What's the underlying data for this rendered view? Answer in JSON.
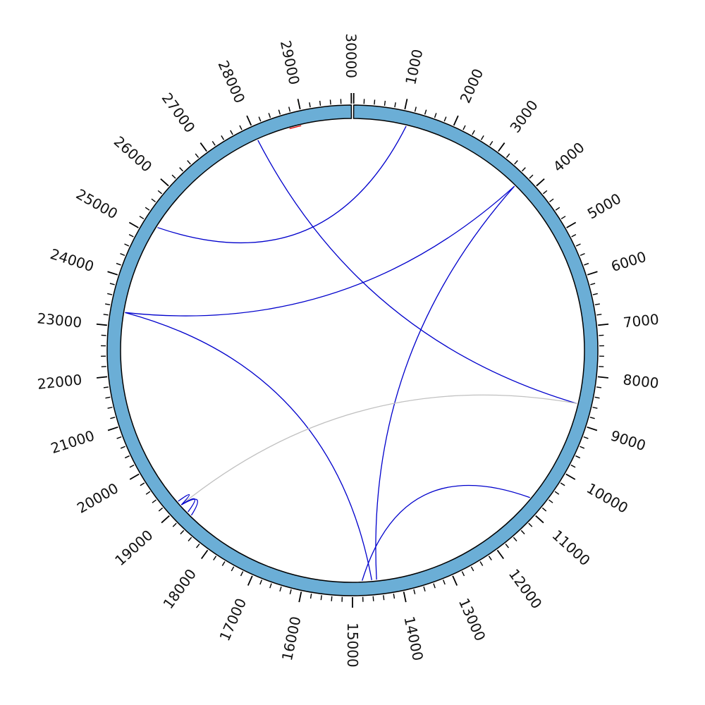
{
  "chart_data": {
    "type": "chord",
    "title": "",
    "genome_length": 30000,
    "axis": {
      "major_tick_interval": 1000,
      "minor_tick_interval": 200,
      "tick_labels": [
        "1000",
        "2000",
        "3000",
        "4000",
        "5000",
        "6000",
        "7000",
        "8000",
        "9000",
        "10000",
        "11000",
        "12000",
        "13000",
        "14000",
        "15000",
        "16000",
        "17000",
        "18000",
        "19000",
        "20000",
        "21000",
        "22000",
        "23000",
        "24000",
        "25000",
        "26000",
        "27000",
        "28000",
        "29000",
        "30000"
      ]
    },
    "colors": {
      "ideogram": "#6baed6",
      "blue": "#0000cc",
      "red": "#dd0000",
      "gray": "#c0c0c0"
    },
    "links": [
      {
        "from": 28700,
        "to": 28950,
        "color": "red",
        "style": "straight"
      },
      {
        "from": 28000,
        "to": 8600,
        "color": "blue"
      },
      {
        "from": 1100,
        "to": 25200,
        "color": "blue"
      },
      {
        "from": 3700,
        "to": 23300,
        "color": "blue"
      },
      {
        "from": 3700,
        "to": 14500,
        "color": "blue"
      },
      {
        "from": 23300,
        "to": 14600,
        "color": "blue"
      },
      {
        "from": 10800,
        "to": 14800,
        "color": "blue"
      },
      {
        "from": 8600,
        "to": 19000,
        "color": "gray"
      },
      {
        "from": 18800,
        "to": 19000,
        "color": "blue"
      },
      {
        "from": 18700,
        "to": 19000,
        "color": "blue"
      },
      {
        "from": 19100,
        "to": 19000,
        "color": "blue"
      }
    ]
  }
}
